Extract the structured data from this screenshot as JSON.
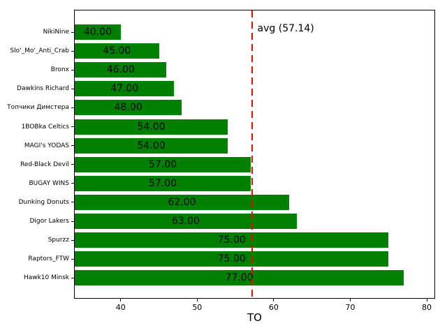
{
  "chart_data": {
    "type": "bar",
    "orientation": "horizontal",
    "title": "",
    "xlabel": "TO",
    "ylabel": "",
    "categories": [
      "NikiNine",
      "Slo'_Mo'_Anti_Crab",
      "Bronx",
      "Dawkins Richard",
      "Топчики Димстера",
      "1BOBka Celtics",
      "MAGI's YODAS",
      "Red-Black Devil",
      "BUGAY WINS",
      "Dunking Donuts",
      "Digor Lakers",
      "Spurzz",
      "Raptors_FTW",
      "Hawk10 Minsk"
    ],
    "values": [
      40,
      45,
      46,
      47,
      48,
      54,
      54,
      57,
      57,
      62,
      63,
      75,
      75,
      77
    ],
    "value_labels": [
      "40.00",
      "45.00",
      "46.00",
      "47.00",
      "48.00",
      "54.00",
      "54.00",
      "57.00",
      "57.00",
      "62.00",
      "63.00",
      "75.00",
      "75.00",
      "77.00"
    ],
    "bar_color": "#008000",
    "value_label_color": "#000000",
    "xlim": [
      34,
      81
    ],
    "xticks": [
      "40",
      "50",
      "60",
      "70",
      "80"
    ],
    "xtick_values": [
      40,
      50,
      60,
      70,
      80
    ],
    "grid": false,
    "legend": null,
    "avg_line": {
      "value": 57.14,
      "label": "avg (57.14)",
      "color": "#ff0000",
      "style": "dashed"
    },
    "background_color": "#ffffff"
  }
}
